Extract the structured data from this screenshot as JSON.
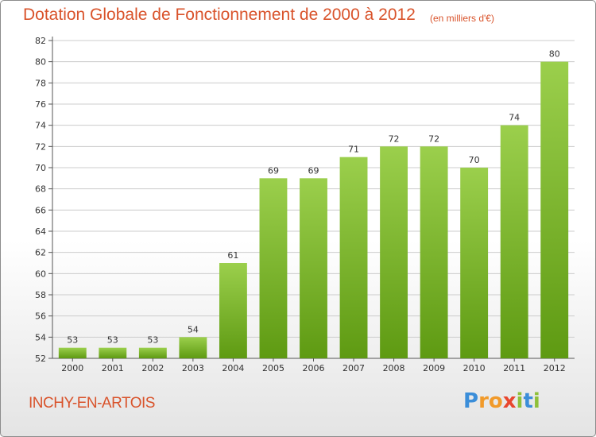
{
  "title": "Dotation Globale de Fonctionnement de 2000 à 2012",
  "unit_note": "(en milliers d'€)",
  "commune": "INCHY-EN-ARTOIS",
  "logo": {
    "text": "Proxiti",
    "letters": [
      "P",
      "r",
      "o",
      "x",
      "i",
      "t",
      "i"
    ]
  },
  "colors": {
    "bar_top": "#9bcf4c",
    "bar_bottom": "#5e9a12",
    "title": "#d9532b",
    "grid": "#cccccc"
  },
  "chart_data": {
    "type": "bar",
    "categories": [
      "2000",
      "2001",
      "2002",
      "2003",
      "2004",
      "2005",
      "2006",
      "2007",
      "2008",
      "2009",
      "2010",
      "2011",
      "2012"
    ],
    "values": [
      53,
      53,
      53,
      54,
      61,
      69,
      69,
      71,
      72,
      72,
      70,
      74,
      80
    ],
    "title": "Dotation Globale de Fonctionnement de 2000 à 2012",
    "xlabel": "",
    "ylabel": "",
    "ylim": [
      52,
      82
    ],
    "yticks": [
      52,
      54,
      56,
      58,
      60,
      62,
      64,
      66,
      68,
      70,
      72,
      74,
      76,
      78,
      80,
      82
    ],
    "grid": true,
    "data_labels": true
  }
}
